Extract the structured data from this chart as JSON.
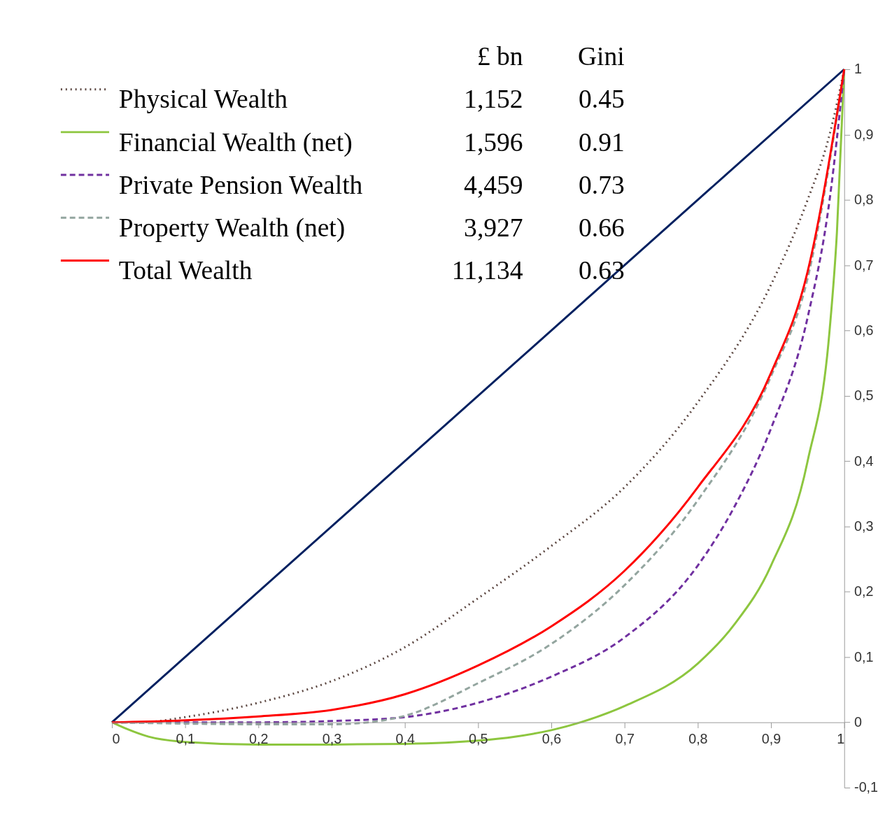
{
  "chart_data": {
    "type": "line",
    "xlim": [
      0,
      1
    ],
    "ylim": [
      -0.1,
      1
    ],
    "xticks": [
      0,
      {
        "value": 0.1,
        "label": "0,1"
      },
      {
        "value": 0.2,
        "label": "0,2"
      },
      {
        "value": 0.3,
        "label": "0,3"
      },
      {
        "value": 0.4,
        "label": "0,4"
      },
      {
        "value": 0.5,
        "label": "0,5"
      },
      {
        "value": 0.6,
        "label": "0,6"
      },
      {
        "value": 0.7,
        "label": "0,7"
      },
      {
        "value": 0.8,
        "label": "0,8"
      },
      {
        "value": 0.9,
        "label": "0,9"
      },
      1
    ],
    "yticks": [
      {
        "value": -0.1,
        "label": "-0,1"
      },
      0,
      {
        "value": 0.1,
        "label": "0,1"
      },
      {
        "value": 0.2,
        "label": "0,2"
      },
      {
        "value": 0.3,
        "label": "0,3"
      },
      {
        "value": 0.4,
        "label": "0,4"
      },
      {
        "value": 0.5,
        "label": "0,5"
      },
      {
        "value": 0.6,
        "label": "0,6"
      },
      {
        "value": 0.7,
        "label": "0,7"
      },
      {
        "value": 0.8,
        "label": "0,8"
      },
      {
        "value": 0.9,
        "label": "0,9"
      },
      1
    ],
    "grid": false,
    "legend": "top left",
    "marker": "none",
    "annotations": [
      "£ bn",
      "Gini",
      "1,152",
      "0.45",
      "1,596",
      "0.91",
      "4,459",
      "0.73",
      "3,927",
      "0.66",
      "11,134",
      "0.63"
    ],
    "series": [
      {
        "color": "#002060",
        "line_style": "solid",
        "x": [
          0,
          1
        ],
        "values": [
          0,
          1
        ]
      },
      {
        "name": "Physical Wealth",
        "color": "#5b4640",
        "line_style": "dotted",
        "x": [
          0,
          0.04,
          0.1,
          0.2,
          0.3,
          0.4,
          0.5,
          0.6,
          0.7,
          0.8,
          0.9,
          0.95,
          0.98,
          1
        ],
        "values": [
          0,
          0,
          0.008,
          0.03,
          0.063,
          0.115,
          0.19,
          0.27,
          0.36,
          0.49,
          0.67,
          0.8,
          0.9,
          1
        ]
      },
      {
        "name": "Financial Wealth (net)",
        "color": "#8dc63f",
        "line_style": "solid",
        "x": [
          0,
          0.02,
          0.05,
          0.1,
          0.2,
          0.3,
          0.4,
          0.5,
          0.55,
          0.6,
          0.64,
          0.7,
          0.8,
          0.85,
          0.9,
          0.95,
          0.98,
          0.99,
          1
        ],
        "values": [
          0,
          -0.01,
          -0.022,
          -0.03,
          -0.034,
          -0.034,
          -0.033,
          -0.028,
          -0.022,
          -0.012,
          0,
          0.025,
          0.09,
          0.15,
          0.24,
          0.4,
          0.6,
          0.75,
          1
        ]
      },
      {
        "name": "Private Pension Wealth",
        "color": "#7030a0",
        "line_style": "dashed",
        "x": [
          0,
          0.1,
          0.2,
          0.3,
          0.4,
          0.5,
          0.6,
          0.7,
          0.8,
          0.85,
          0.9,
          0.95,
          0.98,
          1
        ],
        "values": [
          0,
          0,
          0,
          0.002,
          0.008,
          0.03,
          0.07,
          0.13,
          0.24,
          0.33,
          0.45,
          0.62,
          0.8,
          1
        ]
      },
      {
        "name": "Property Wealth (net)",
        "color": "#93a59f",
        "line_style": "dashed",
        "x": [
          0,
          0.1,
          0.2,
          0.3,
          0.35,
          0.4,
          0.5,
          0.6,
          0.7,
          0.8,
          0.9,
          0.95,
          1
        ],
        "values": [
          0,
          -0.002,
          -0.003,
          -0.003,
          0,
          0.01,
          0.06,
          0.12,
          0.21,
          0.34,
          0.53,
          0.68,
          1
        ]
      },
      {
        "name": "Total Wealth",
        "color": "#ff0000",
        "line_style": "solid",
        "x": [
          0,
          0.1,
          0.2,
          0.3,
          0.4,
          0.5,
          0.6,
          0.7,
          0.8,
          0.9,
          0.95,
          1
        ],
        "values": [
          0,
          0.003,
          0.009,
          0.019,
          0.043,
          0.087,
          0.147,
          0.232,
          0.36,
          0.535,
          0.69,
          1
        ]
      }
    ]
  }
}
